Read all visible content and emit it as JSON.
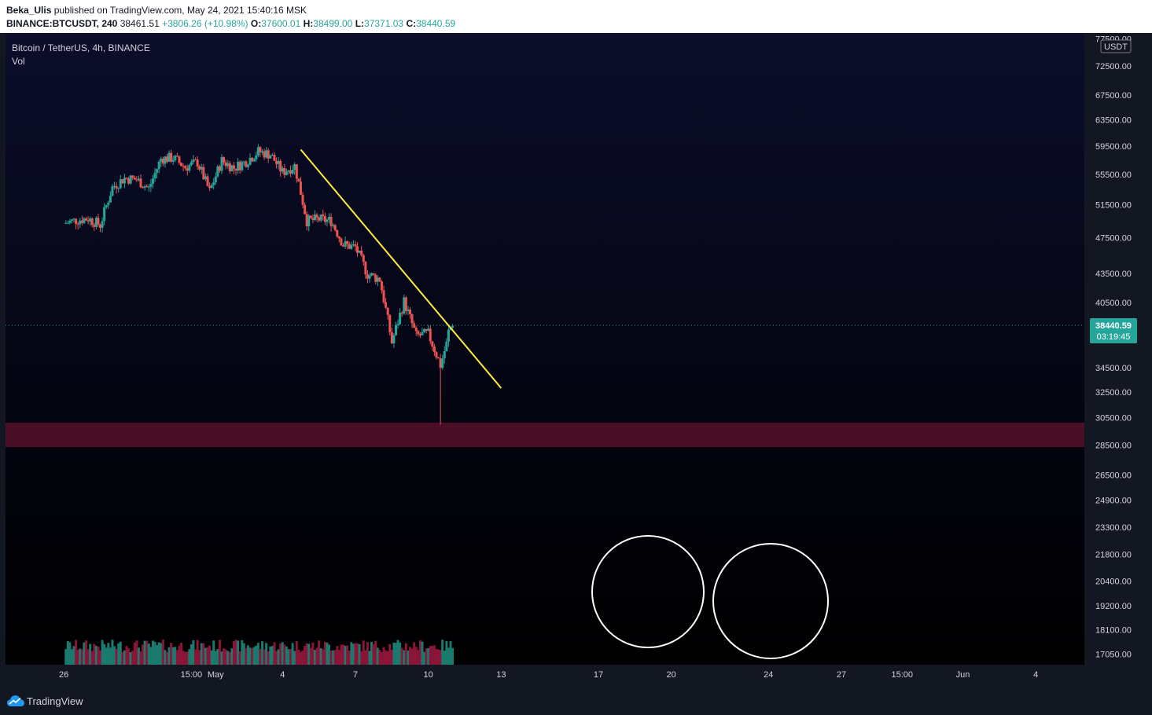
{
  "header": {
    "user": "Beka_Ulis",
    "published_text": "published on TradingView.com, May 24, 2021 15:40:16 MSK",
    "symbol": "BINANCE:BTCUSDT, 240",
    "last": "38461.51",
    "change": "+3806.26 (+10.98%)",
    "o_label": "O:",
    "o_value": "37600.01",
    "h_label": "H:",
    "h_value": "38499.00",
    "l_label": "L:",
    "l_value": "37371.03",
    "c_label": "C:",
    "c_value": "38440.59"
  },
  "legend": {
    "title": "Bitcoin / TetherUS, 4h, BINANCE",
    "vol": "Vol"
  },
  "footer": {
    "brand": "TradingView"
  },
  "colors": {
    "bg_top": "#0b0d2a",
    "bg_bottom": "#000000",
    "up": "#26a69a",
    "down": "#ef5350",
    "vol_up": "#1a7a6e",
    "vol_down": "#8a1538",
    "trendline": "#ffeb3b",
    "zone": "#4a0f24",
    "axis_text": "#d1d4dc",
    "price_tag": "#26a69a"
  },
  "chart_data": {
    "type": "candlestick",
    "interval": "4h",
    "y_scale": "log",
    "ylim": [
      16800,
      78000
    ],
    "y_unit": "USDT",
    "y_ticks": [
      77500,
      72500,
      67500,
      63500,
      59500,
      55500,
      51500,
      47500,
      43500,
      40500,
      34500,
      32500,
      30500,
      28500,
      26500,
      24900,
      23300,
      21800,
      20400,
      19200,
      18100,
      17050
    ],
    "y_tick_labels": [
      "77500.00",
      "72500.00",
      "67500.00",
      "63500.00",
      "59500.00",
      "55500.00",
      "51500.00",
      "47500.00",
      "43500.00",
      "40500.00",
      "34500.00",
      "32500.00",
      "30500.00",
      "28500.00",
      "26500.00",
      "24900.00",
      "23300.00",
      "21800.00",
      "20400.00",
      "19200.00",
      "18100.00",
      "17050.00"
    ],
    "x_tick_labels": [
      "26",
      "15:00",
      "May",
      "4",
      "7",
      "10",
      "13",
      "17",
      "20",
      "24",
      "27",
      "15:00",
      "Jun",
      "4"
    ],
    "x_tick_positions": [
      -4,
      6.5,
      8.5,
      14,
      20,
      26,
      32,
      40,
      46,
      54,
      60,
      65,
      70,
      76
    ],
    "xlim": [
      -8.8,
      80
    ],
    "daily_closes": [
      [
        "2021-04-22",
        49200
      ],
      [
        "2021-04-23",
        49600
      ],
      [
        "2021-04-24",
        49800
      ],
      [
        "2021-04-25",
        49000
      ],
      [
        "2021-04-26",
        53800
      ],
      [
        "2021-04-27",
        55000
      ],
      [
        "2021-04-28",
        54800
      ],
      [
        "2021-04-29",
        53600
      ],
      [
        "2021-04-30",
        57700
      ],
      [
        "2021-05-01",
        57800
      ],
      [
        "2021-05-02",
        56500
      ],
      [
        "2021-05-03",
        57200
      ],
      [
        "2021-05-04",
        53200
      ],
      [
        "2021-05-05",
        57400
      ],
      [
        "2021-05-06",
        56400
      ],
      [
        "2021-05-07",
        57300
      ],
      [
        "2021-05-08",
        58700
      ],
      [
        "2021-05-09",
        58300
      ],
      [
        "2021-05-10",
        55800
      ],
      [
        "2021-05-11",
        56700
      ],
      [
        "2021-05-12",
        49500
      ],
      [
        "2021-05-13",
        49700
      ],
      [
        "2021-05-14",
        49500
      ],
      [
        "2021-05-15",
        46700
      ],
      [
        "2021-05-16",
        46400
      ],
      [
        "2021-05-17",
        43400
      ],
      [
        "2021-05-18",
        42900
      ],
      [
        "2021-05-19",
        36700
      ],
      [
        "2021-05-20",
        40600
      ],
      [
        "2021-05-21",
        37300
      ],
      [
        "2021-05-22",
        37500
      ],
      [
        "2021-05-23",
        34700
      ],
      [
        "2021-05-24",
        38440
      ]
    ],
    "last_price": 38440.59,
    "price_tag": "38440.59",
    "countdown": "03:19:45",
    "volume_relative_max": 1.0,
    "support_zone": [
      28200,
      30300
    ],
    "trendline": [
      [
        "2021-05-11 12:00",
        59000
      ],
      [
        "2021-05-28 00:00",
        32800
      ]
    ],
    "annotations": [
      "circle around May 19 volume spike",
      "circle around May 23-24 volume"
    ]
  }
}
